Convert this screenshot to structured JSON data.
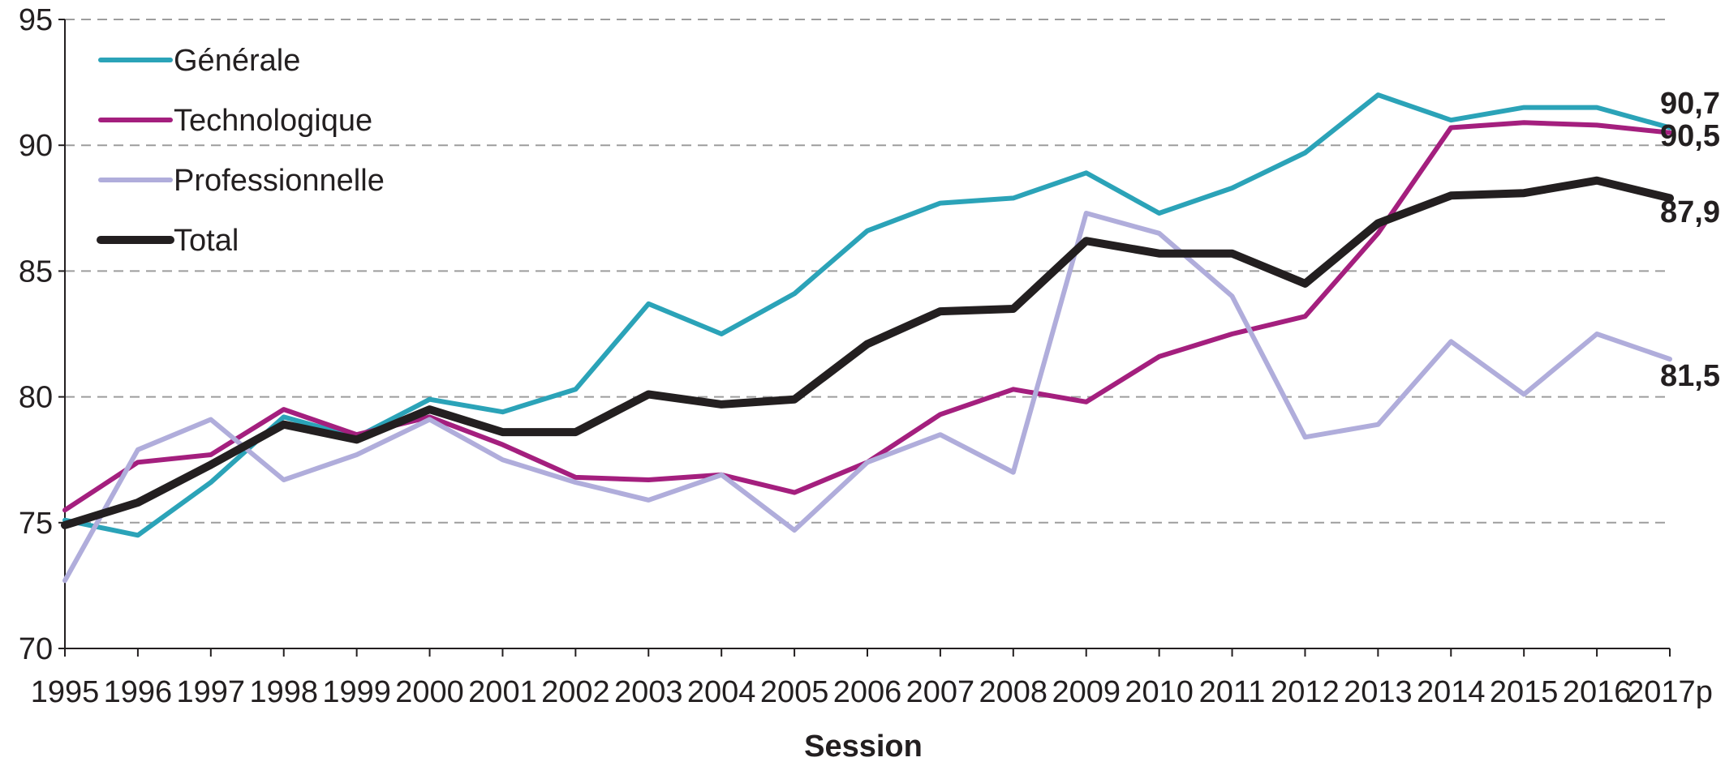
{
  "chart_data": {
    "type": "line",
    "xlabel": "Session",
    "ylabel": "",
    "ylim": [
      70,
      95
    ],
    "yticks": [
      "70",
      "75",
      "80",
      "85",
      "90",
      "95"
    ],
    "categories": [
      "1995",
      "1996",
      "1997",
      "1998",
      "1999",
      "2000",
      "2001",
      "2002",
      "2003",
      "2004",
      "2005",
      "2006",
      "2007",
      "2008",
      "2009",
      "2010",
      "2011",
      "2012",
      "2013",
      "2014",
      "2015",
      "2016",
      "2017p"
    ],
    "grid": "horizontal dashed",
    "legend_position": "top-left",
    "series": [
      {
        "name": "Générale",
        "color": "#2ba3b8",
        "values": [
          75.1,
          74.5,
          76.6,
          79.2,
          78.4,
          79.9,
          79.4,
          80.3,
          83.7,
          82.5,
          84.1,
          86.6,
          87.7,
          87.9,
          88.9,
          87.3,
          88.3,
          89.7,
          92.0,
          91.0,
          91.5,
          91.5,
          90.7
        ]
      },
      {
        "name": "Technologique",
        "color": "#a41f7e",
        "values": [
          75.5,
          77.4,
          77.7,
          79.5,
          78.5,
          79.2,
          78.1,
          76.8,
          76.7,
          76.9,
          76.2,
          77.4,
          79.3,
          80.3,
          79.8,
          81.6,
          82.5,
          83.2,
          86.5,
          90.7,
          90.9,
          90.8,
          90.5
        ]
      },
      {
        "name": "Professionnelle",
        "color": "#b0addb",
        "values": [
          72.7,
          77.9,
          79.1,
          76.7,
          77.7,
          79.1,
          77.5,
          76.6,
          75.9,
          76.9,
          74.7,
          77.4,
          78.5,
          77.0,
          87.3,
          86.5,
          84.0,
          78.4,
          78.9,
          82.2,
          80.1,
          82.5,
          81.5
        ]
      },
      {
        "name": "Total",
        "color": "#231f20",
        "values": [
          74.9,
          75.8,
          77.3,
          78.9,
          78.3,
          79.5,
          78.6,
          78.6,
          80.1,
          79.7,
          79.9,
          82.1,
          83.4,
          83.5,
          86.2,
          85.7,
          85.7,
          84.5,
          86.9,
          88.0,
          88.1,
          88.6,
          87.9
        ]
      }
    ],
    "end_labels": [
      "90,7",
      "90,5",
      "87,9",
      "81,5"
    ]
  }
}
